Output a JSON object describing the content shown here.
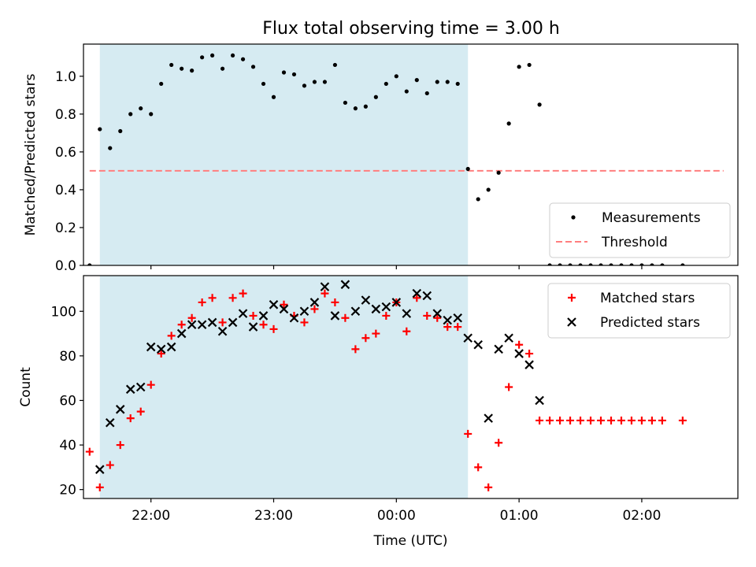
{
  "title": "Flux total observing time = 3.00 h",
  "colors": {
    "observing_span": "#add8e6",
    "measurements": "#000000",
    "threshold": "#ff7f7f",
    "matched": "#ff0000",
    "predicted": "#000000"
  },
  "chart_data": [
    {
      "type": "scatter",
      "panel": "top",
      "xlabel": "",
      "ylabel": "Matched/Predicted stars",
      "xlim": [
        "21:27",
        "02:47"
      ],
      "ylim": [
        0,
        1.17
      ],
      "yticks": [
        0.0,
        0.2,
        0.4,
        0.6,
        0.8,
        1.0
      ],
      "ytick_labels": [
        "0.0",
        "0.2",
        "0.4",
        "0.6",
        "0.8",
        "1.0"
      ],
      "observing_span": [
        "21:35",
        "00:35"
      ],
      "legend": {
        "placement": "lower right",
        "entries": [
          "Measurements",
          "Threshold"
        ]
      },
      "threshold": {
        "name": "Threshold",
        "y": 0.5,
        "x_range": [
          "21:30",
          "02:40"
        ],
        "style": "dashed"
      },
      "series": [
        {
          "name": "Measurements",
          "marker": "dot",
          "points": [
            [
              "21:30",
              0.0
            ],
            [
              "21:35",
              0.72
            ],
            [
              "21:40",
              0.62
            ],
            [
              "21:45",
              0.71
            ],
            [
              "21:50",
              0.8
            ],
            [
              "21:55",
              0.83
            ],
            [
              "22:00",
              0.8
            ],
            [
              "22:05",
              0.96
            ],
            [
              "22:10",
              1.06
            ],
            [
              "22:15",
              1.04
            ],
            [
              "22:20",
              1.03
            ],
            [
              "22:25",
              1.1
            ],
            [
              "22:30",
              1.11
            ],
            [
              "22:35",
              1.04
            ],
            [
              "22:40",
              1.11
            ],
            [
              "22:45",
              1.09
            ],
            [
              "22:50",
              1.05
            ],
            [
              "22:55",
              0.96
            ],
            [
              "23:00",
              0.89
            ],
            [
              "23:05",
              1.02
            ],
            [
              "23:10",
              1.01
            ],
            [
              "23:15",
              0.95
            ],
            [
              "23:20",
              0.97
            ],
            [
              "23:25",
              0.97
            ],
            [
              "23:30",
              1.06
            ],
            [
              "23:35",
              0.86
            ],
            [
              "23:40",
              0.83
            ],
            [
              "23:45",
              0.84
            ],
            [
              "23:50",
              0.89
            ],
            [
              "23:55",
              0.96
            ],
            [
              "00:00",
              1.0
            ],
            [
              "00:05",
              0.92
            ],
            [
              "00:10",
              0.98
            ],
            [
              "00:15",
              0.91
            ],
            [
              "00:20",
              0.97
            ],
            [
              "00:25",
              0.97
            ],
            [
              "00:30",
              0.96
            ],
            [
              "00:35",
              0.51
            ],
            [
              "00:40",
              0.35
            ],
            [
              "00:45",
              0.4
            ],
            [
              "00:50",
              0.49
            ],
            [
              "00:55",
              0.75
            ],
            [
              "01:00",
              1.05
            ],
            [
              "01:05",
              1.06
            ],
            [
              "01:10",
              0.85
            ],
            [
              "01:15",
              0.0
            ],
            [
              "01:20",
              0.0
            ],
            [
              "01:25",
              0.0
            ],
            [
              "01:30",
              0.0
            ],
            [
              "01:35",
              0.0
            ],
            [
              "01:40",
              0.0
            ],
            [
              "01:45",
              0.0
            ],
            [
              "01:50",
              0.0
            ],
            [
              "01:55",
              0.0
            ],
            [
              "02:00",
              0.0
            ],
            [
              "02:05",
              0.0
            ],
            [
              "02:10",
              0.0
            ],
            [
              "02:20",
              0.0
            ]
          ]
        }
      ]
    },
    {
      "type": "scatter",
      "panel": "bottom",
      "xlabel": "Time (UTC)",
      "ylabel": "Count",
      "xlim": [
        "21:27",
        "02:47"
      ],
      "ylim": [
        16,
        116
      ],
      "yticks": [
        20,
        40,
        60,
        80,
        100
      ],
      "ytick_labels": [
        "20",
        "40",
        "60",
        "80",
        "100"
      ],
      "xticks": [
        "22:00",
        "23:00",
        "00:00",
        "01:00",
        "02:00"
      ],
      "xtick_labels": [
        "22:00",
        "23:00",
        "00:00",
        "01:00",
        "02:00"
      ],
      "observing_span": [
        "21:35",
        "00:35"
      ],
      "legend": {
        "placement": "upper right",
        "entries": [
          "Matched stars",
          "Predicted stars"
        ]
      },
      "series": [
        {
          "name": "Matched stars",
          "marker": "plus",
          "points": [
            [
              "21:30",
              37
            ],
            [
              "21:35",
              21
            ],
            [
              "21:40",
              31
            ],
            [
              "21:45",
              40
            ],
            [
              "21:50",
              52
            ],
            [
              "21:55",
              55
            ],
            [
              "22:00",
              67
            ],
            [
              "22:05",
              81
            ],
            [
              "22:10",
              89
            ],
            [
              "22:15",
              94
            ],
            [
              "22:20",
              97
            ],
            [
              "22:25",
              104
            ],
            [
              "22:30",
              106
            ],
            [
              "22:35",
              95
            ],
            [
              "22:40",
              106
            ],
            [
              "22:45",
              108
            ],
            [
              "22:50",
              98
            ],
            [
              "22:55",
              94
            ],
            [
              "23:00",
              92
            ],
            [
              "23:05",
              103
            ],
            [
              "23:10",
              98
            ],
            [
              "23:15",
              95
            ],
            [
              "23:20",
              101
            ],
            [
              "23:25",
              108
            ],
            [
              "23:30",
              104
            ],
            [
              "23:35",
              97
            ],
            [
              "23:40",
              83
            ],
            [
              "23:45",
              88
            ],
            [
              "23:50",
              90
            ],
            [
              "23:55",
              98
            ],
            [
              "00:00",
              104
            ],
            [
              "00:05",
              91
            ],
            [
              "00:10",
              106
            ],
            [
              "00:15",
              98
            ],
            [
              "00:20",
              97
            ],
            [
              "00:25",
              93
            ],
            [
              "00:30",
              93
            ],
            [
              "00:35",
              45
            ],
            [
              "00:40",
              30
            ],
            [
              "00:45",
              21
            ],
            [
              "00:50",
              41
            ],
            [
              "00:55",
              66
            ],
            [
              "01:00",
              85
            ],
            [
              "01:05",
              81
            ],
            [
              "01:10",
              51
            ],
            [
              "01:15",
              51
            ],
            [
              "01:20",
              51
            ],
            [
              "01:25",
              51
            ],
            [
              "01:30",
              51
            ],
            [
              "01:35",
              51
            ],
            [
              "01:40",
              51
            ],
            [
              "01:45",
              51
            ],
            [
              "01:50",
              51
            ],
            [
              "01:55",
              51
            ],
            [
              "02:00",
              51
            ],
            [
              "02:05",
              51
            ],
            [
              "02:10",
              51
            ],
            [
              "02:20",
              51
            ]
          ]
        },
        {
          "name": "Predicted stars",
          "marker": "x",
          "points": [
            [
              "21:35",
              29
            ],
            [
              "21:40",
              50
            ],
            [
              "21:45",
              56
            ],
            [
              "21:50",
              65
            ],
            [
              "21:55",
              66
            ],
            [
              "22:00",
              84
            ],
            [
              "22:05",
              83
            ],
            [
              "22:10",
              84
            ],
            [
              "22:15",
              90
            ],
            [
              "22:20",
              94
            ],
            [
              "22:25",
              94
            ],
            [
              "22:30",
              95
            ],
            [
              "22:35",
              91
            ],
            [
              "22:40",
              95
            ],
            [
              "22:45",
              99
            ],
            [
              "22:50",
              93
            ],
            [
              "22:55",
              98
            ],
            [
              "23:00",
              103
            ],
            [
              "23:05",
              101
            ],
            [
              "23:10",
              97
            ],
            [
              "23:15",
              100
            ],
            [
              "23:20",
              104
            ],
            [
              "23:25",
              111
            ],
            [
              "23:30",
              98
            ],
            [
              "23:35",
              112
            ],
            [
              "23:40",
              100
            ],
            [
              "23:45",
              105
            ],
            [
              "23:50",
              101
            ],
            [
              "23:55",
              102
            ],
            [
              "00:00",
              104
            ],
            [
              "00:05",
              99
            ],
            [
              "00:10",
              108
            ],
            [
              "00:15",
              107
            ],
            [
              "00:20",
              99
            ],
            [
              "00:25",
              96
            ],
            [
              "00:30",
              97
            ],
            [
              "00:35",
              88
            ],
            [
              "00:40",
              85
            ],
            [
              "00:45",
              52
            ],
            [
              "00:50",
              83
            ],
            [
              "00:55",
              88
            ],
            [
              "01:00",
              81
            ],
            [
              "01:05",
              76
            ],
            [
              "01:10",
              60
            ]
          ]
        }
      ]
    }
  ]
}
